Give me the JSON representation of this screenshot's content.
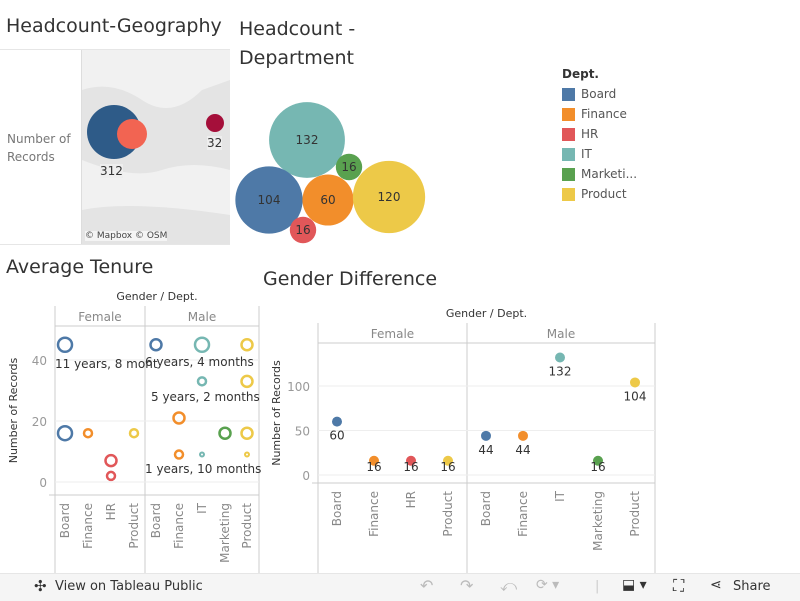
{
  "geo": {
    "title": "Headcount-Geography",
    "legend_label": "Number of Records",
    "values": [
      "312",
      "32"
    ],
    "attribution": "© Mapbox  © OSM"
  },
  "dept": {
    "title": "Headcount - Department",
    "legend_title": "Dept.",
    "legend": [
      {
        "label": "Board",
        "color": "#4e79a7"
      },
      {
        "label": "Finance",
        "color": "#f28e2b"
      },
      {
        "label": "HR",
        "color": "#e15759"
      },
      {
        "label": "IT",
        "color": "#76b7b2"
      },
      {
        "label": "Marketi...",
        "color": "#59a14f"
      },
      {
        "label": "Product",
        "color": "#edc948"
      }
    ],
    "bubbles": [
      {
        "dept": "IT",
        "value": 132
      },
      {
        "dept": "Marketing",
        "value": 16
      },
      {
        "dept": "Board",
        "value": 104
      },
      {
        "dept": "Finance",
        "value": 60
      },
      {
        "dept": "Product",
        "value": 120
      },
      {
        "dept": "HR",
        "value": 16
      }
    ]
  },
  "tenure": {
    "title": "Average Tenure",
    "header": "Gender / Dept.",
    "genders": [
      "Female",
      "Male"
    ],
    "ylabel": "Number of Records",
    "yticks": [
      "0",
      "20",
      "40"
    ],
    "labels": [
      "11 years, 8 mont",
      "6 years, 4 months",
      "5 years, 2 months",
      "1 years, 10 months"
    ]
  },
  "chart_data": [
    {
      "type": "scatter",
      "title": "Average Tenure",
      "xlabel": "Gender / Dept.",
      "ylabel": "Number of Records",
      "ylim": [
        0,
        50
      ],
      "categories": [
        [
          "Female",
          "Board"
        ],
        [
          "Female",
          "Finance"
        ],
        [
          "Female",
          "HR"
        ],
        [
          "Female",
          "Product"
        ],
        [
          "Male",
          "Board"
        ],
        [
          "Male",
          "Finance"
        ],
        [
          "Male",
          "IT"
        ],
        [
          "Male",
          "Marketing"
        ],
        [
          "Male",
          "Product"
        ]
      ],
      "points": [
        {
          "cat": 0,
          "y": 45,
          "size": "large",
          "dept": "Board"
        },
        {
          "cat": 0,
          "y": 16,
          "size": "large",
          "dept": "Board"
        },
        {
          "cat": 1,
          "y": 16,
          "size": "small",
          "dept": "Finance"
        },
        {
          "cat": 2,
          "y": 7,
          "size": "medium",
          "dept": "HR"
        },
        {
          "cat": 2,
          "y": 2,
          "size": "small",
          "dept": "HR"
        },
        {
          "cat": 3,
          "y": 16,
          "size": "small",
          "dept": "Product"
        },
        {
          "cat": 4,
          "y": 45,
          "size": "medium",
          "dept": "Board"
        },
        {
          "cat": 5,
          "y": 21,
          "size": "medium",
          "dept": "Finance"
        },
        {
          "cat": 5,
          "y": 9,
          "size": "small",
          "dept": "Finance"
        },
        {
          "cat": 6,
          "y": 45,
          "size": "large",
          "dept": "IT"
        },
        {
          "cat": 6,
          "y": 33,
          "size": "small",
          "dept": "IT"
        },
        {
          "cat": 6,
          "y": 9,
          "size": "tiny",
          "dept": "IT"
        },
        {
          "cat": 7,
          "y": 16,
          "size": "medium",
          "dept": "Marketing"
        },
        {
          "cat": 8,
          "y": 45,
          "size": "medium",
          "dept": "Product"
        },
        {
          "cat": 8,
          "y": 33,
          "size": "medium",
          "dept": "Product"
        },
        {
          "cat": 8,
          "y": 16,
          "size": "medium",
          "dept": "Product"
        },
        {
          "cat": 8,
          "y": 9,
          "size": "tiny",
          "dept": "Product"
        }
      ]
    },
    {
      "type": "scatter",
      "title": "Gender Difference",
      "xlabel": "Gender / Dept.",
      "ylabel": "Number of Records",
      "ylim": [
        0,
        150
      ],
      "yticks": [
        "0",
        "50",
        "100"
      ],
      "genders": [
        "Female",
        "Male"
      ],
      "categories": [
        [
          "Female",
          "Board"
        ],
        [
          "Female",
          "Finance"
        ],
        [
          "Female",
          "HR"
        ],
        [
          "Female",
          "Product"
        ],
        [
          "Male",
          "Board"
        ],
        [
          "Male",
          "Finance"
        ],
        [
          "Male",
          "IT"
        ],
        [
          "Male",
          "Marketing"
        ],
        [
          "Male",
          "Product"
        ]
      ],
      "values": [
        60,
        16,
        16,
        16,
        44,
        44,
        132,
        16,
        104
      ]
    }
  ],
  "toolbar": {
    "view_label": "View on Tableau Public",
    "share_label": "Share"
  }
}
